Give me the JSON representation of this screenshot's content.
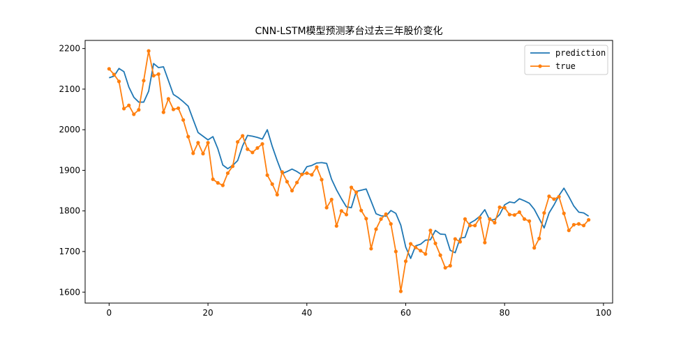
{
  "chart_data": {
    "type": "line",
    "title": "CNN-LSTM模型预测茅台过去三年股价变化",
    "xlabel": "",
    "ylabel": "",
    "xlim": [
      -4.85,
      101.85
    ],
    "ylim": [
      1573,
      2220
    ],
    "xticks": [
      0,
      20,
      40,
      60,
      80,
      100
    ],
    "yticks": [
      1600,
      1700,
      1800,
      1900,
      2000,
      2100,
      2200
    ],
    "grid": false,
    "legend_position": "upper right",
    "series": [
      {
        "name": "prediction",
        "color": "#1f77b4",
        "marker": "none",
        "values": [
          2128,
          2132,
          2151,
          2143,
          2105,
          2080,
          2068,
          2068,
          2095,
          2163,
          2153,
          2155,
          2121,
          2087,
          2079,
          2069,
          2058,
          2025,
          1993,
          1984,
          1975,
          1983,
          1953,
          1913,
          1904,
          1912,
          1924,
          1960,
          1986,
          1984,
          1981,
          1977,
          2000,
          1959,
          1924,
          1892,
          1897,
          1903,
          1897,
          1889,
          1909,
          1912,
          1918,
          1919,
          1917,
          1878,
          1852,
          1830,
          1810,
          1808,
          1848,
          1851,
          1854,
          1824,
          1793,
          1788,
          1787,
          1801,
          1794,
          1765,
          1711,
          1683,
          1714,
          1718,
          1728,
          1729,
          1752,
          1743,
          1742,
          1703,
          1697,
          1733,
          1735,
          1770,
          1777,
          1787,
          1803,
          1777,
          1779,
          1791,
          1815,
          1822,
          1820,
          1830,
          1825,
          1819,
          1804,
          1781,
          1758,
          1795,
          1815,
          1838,
          1856,
          1835,
          1812,
          1797,
          1795,
          1787
        ]
      },
      {
        "name": "true",
        "color": "#ff7f0e",
        "marker": "dot",
        "values": [
          2150,
          2136,
          2119,
          2052,
          2060,
          2038,
          2049,
          2121,
          2194,
          2133,
          2137,
          2043,
          2076,
          2050,
          2053,
          2024,
          1983,
          1942,
          1968,
          1941,
          1968,
          1878,
          1869,
          1863,
          1893,
          1910,
          1970,
          1985,
          1952,
          1944,
          1955,
          1965,
          1888,
          1866,
          1840,
          1896,
          1872,
          1850,
          1870,
          1890,
          1893,
          1889,
          1908,
          1877,
          1808,
          1828,
          1763,
          1800,
          1791,
          1858,
          1846,
          1801,
          1781,
          1707,
          1755,
          1780,
          1792,
          1768,
          1700,
          1602,
          1676,
          1719,
          1710,
          1702,
          1694,
          1752,
          1720,
          1691,
          1660,
          1665,
          1731,
          1724,
          1780,
          1764,
          1764,
          1783,
          1722,
          1780,
          1771,
          1809,
          1808,
          1791,
          1790,
          1797,
          1780,
          1775,
          1709,
          1732,
          1795,
          1836,
          1829,
          1835,
          1794,
          1752,
          1766,
          1768,
          1764,
          1778
        ]
      }
    ]
  }
}
